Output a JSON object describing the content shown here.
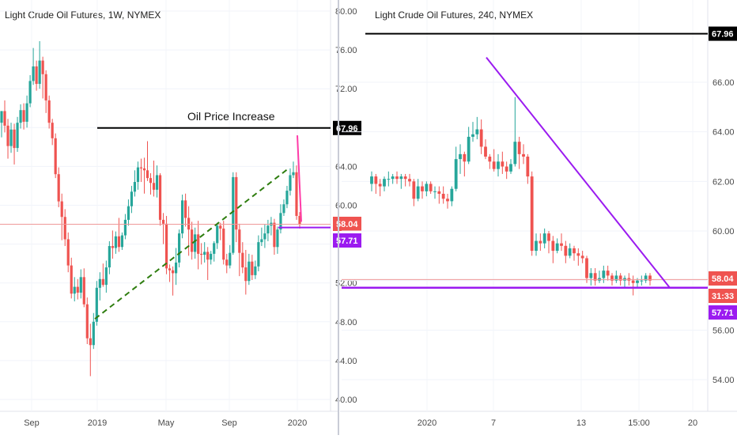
{
  "colors": {
    "bull": "#26a69a",
    "bear": "#ef5350",
    "black_label": "#000000",
    "purple": "#9b1bf0",
    "green_dash": "#2e7d0f",
    "pink": "#ff3ba8",
    "price_label": "#ef5350"
  },
  "chart_data": [
    {
      "type": "candlestick",
      "title": "Light Crude Oil Futures, 1W, NYMEX",
      "ylim": [
        38.5,
        81.5
      ],
      "y_ticks": [
        "80.00",
        "76.00",
        "72.00",
        "68.00",
        "64.00",
        "60.00",
        "56.00",
        "52.00",
        "48.00",
        "44.00",
        "40.00"
      ],
      "x_ticks": [
        "Sep",
        "2019",
        "May",
        "Sep",
        "2020"
      ],
      "labels": [
        {
          "value": 67.96,
          "text": "67.96",
          "color": "#000000"
        },
        {
          "value": 58.04,
          "text": "58.04",
          "color": "#ef5350"
        },
        {
          "value": 57.71,
          "text": "57.71",
          "color": "#9b1bf0"
        }
      ],
      "annotation": "Oil Price Increase",
      "lines": {
        "resistance": 67.96,
        "current": 58.04,
        "support": 57.71,
        "trend_start": 48.3,
        "trend_end": 63.8
      },
      "candles": [
        [
          68.5,
          69.7,
          69.7,
          67.0
        ],
        [
          69.7,
          68.2,
          70.8,
          67.5
        ],
        [
          68.2,
          66.1,
          68.9,
          64.8
        ],
        [
          66.1,
          67.8,
          68.5,
          65.4
        ],
        [
          67.8,
          65.9,
          68.4,
          64.2
        ],
        [
          65.9,
          68.5,
          69.1,
          65.5
        ],
        [
          68.5,
          69.8,
          70.4,
          67.9
        ],
        [
          69.8,
          68.6,
          70.5,
          67.8
        ],
        [
          68.6,
          70.5,
          71.3,
          68.0
        ],
        [
          70.5,
          72.8,
          73.4,
          70.1
        ],
        [
          72.8,
          74.3,
          76.2,
          72.4
        ],
        [
          74.3,
          72.5,
          74.9,
          71.8
        ],
        [
          72.5,
          74.9,
          76.9,
          72.0
        ],
        [
          74.9,
          73.5,
          75.3,
          71.0
        ],
        [
          73.5,
          70.8,
          73.9,
          69.5
        ],
        [
          70.8,
          68.5,
          71.3,
          67.9
        ],
        [
          68.5,
          66.9,
          68.9,
          66.2
        ],
        [
          66.9,
          63.2,
          67.4,
          62.8
        ],
        [
          63.2,
          60.4,
          63.9,
          59.8
        ],
        [
          60.4,
          58.8,
          61.2,
          56.4
        ],
        [
          58.8,
          56.5,
          59.6,
          55.8
        ],
        [
          56.5,
          53.8,
          57.2,
          53.1
        ],
        [
          53.8,
          50.9,
          54.6,
          50.4
        ],
        [
          50.9,
          51.6,
          52.6,
          50.1
        ],
        [
          51.6,
          51.0,
          52.4,
          50.3
        ],
        [
          51.0,
          52.6,
          53.4,
          50.4
        ],
        [
          52.6,
          49.8,
          53.5,
          49.5
        ],
        [
          49.8,
          46.3,
          50.5,
          45.7
        ],
        [
          46.3,
          45.6,
          47.8,
          42.4
        ],
        [
          45.6,
          48.0,
          48.9,
          45.2
        ],
        [
          48.0,
          51.5,
          52.2,
          47.6
        ],
        [
          51.5,
          52.4,
          53.1,
          50.2
        ],
        [
          52.4,
          51.8,
          54.0,
          51.6
        ],
        [
          51.8,
          53.6,
          54.3,
          51.0
        ],
        [
          53.6,
          55.8,
          56.3,
          52.9
        ],
        [
          55.8,
          55.6,
          57.4,
          54.5
        ],
        [
          55.6,
          56.8,
          57.3,
          55.0
        ],
        [
          56.8,
          55.7,
          58.7,
          55.2
        ],
        [
          55.7,
          56.9,
          57.2,
          55.4
        ],
        [
          56.9,
          58.5,
          59.1,
          56.5
        ],
        [
          58.5,
          59.9,
          60.6,
          57.9
        ],
        [
          59.9,
          61.4,
          62.0,
          59.2
        ],
        [
          61.4,
          62.4,
          63.6,
          60.9
        ],
        [
          62.4,
          63.9,
          64.5,
          61.6
        ],
        [
          63.9,
          63.8,
          64.8,
          62.4
        ],
        [
          63.8,
          63.6,
          64.9,
          61.2
        ],
        [
          63.6,
          62.8,
          66.6,
          62.5
        ],
        [
          62.8,
          62.3,
          63.3,
          61.1
        ],
        [
          62.3,
          61.6,
          64.6,
          60.9
        ],
        [
          61.6,
          63.1,
          64.1,
          60.8
        ],
        [
          63.1,
          58.5,
          63.3,
          57.9
        ],
        [
          58.5,
          58.1,
          59.2,
          56.0
        ],
        [
          58.1,
          53.5,
          58.9,
          52.9
        ],
        [
          53.5,
          53.3,
          53.9,
          52.1
        ],
        [
          53.3,
          53.0,
          53.7,
          50.7
        ],
        [
          53.0,
          54.1,
          55.6,
          51.8
        ],
        [
          54.1,
          57.1,
          57.5,
          53.6
        ],
        [
          57.1,
          60.5,
          61.1,
          56.6
        ],
        [
          60.5,
          58.7,
          61.2,
          57.8
        ],
        [
          58.7,
          57.5,
          59.9,
          54.8
        ],
        [
          57.5,
          55.2,
          58.3,
          54.4
        ],
        [
          55.2,
          57.0,
          57.7,
          54.5
        ],
        [
          57.0,
          55.0,
          58.4,
          53.4
        ],
        [
          55.0,
          54.9,
          56.1,
          53.9
        ],
        [
          54.9,
          55.2,
          56.2,
          54.1
        ],
        [
          55.2,
          54.4,
          55.7,
          52.3
        ],
        [
          54.4,
          55.0,
          55.3,
          53.9
        ],
        [
          55.0,
          56.1,
          56.3,
          54.2
        ],
        [
          56.1,
          57.9,
          58.2,
          55.5
        ],
        [
          57.9,
          57.6,
          58.2,
          56.4
        ],
        [
          57.6,
          54.4,
          58.4,
          53.9
        ],
        [
          54.4,
          53.8,
          55.0,
          53.0
        ],
        [
          53.8,
          55.1,
          55.9,
          53.5
        ],
        [
          55.1,
          62.9,
          63.4,
          54.9
        ],
        [
          62.9,
          57.5,
          63.4,
          56.2
        ],
        [
          57.5,
          55.1,
          58.1,
          52.7
        ],
        [
          55.1,
          53.6,
          56.2,
          53.0
        ],
        [
          53.6,
          52.2,
          55.4,
          50.8
        ],
        [
          52.2,
          54.2,
          55.0,
          51.8
        ],
        [
          54.2,
          52.8,
          54.9,
          52.3
        ],
        [
          52.8,
          53.7,
          54.3,
          52.4
        ],
        [
          53.7,
          56.2,
          56.9,
          53.2
        ],
        [
          56.2,
          56.5,
          57.7,
          55.8
        ],
        [
          56.5,
          57.1,
          58.0,
          55.6
        ],
        [
          57.1,
          57.9,
          58.5,
          56.3
        ],
        [
          57.9,
          58.2,
          58.8,
          56.9
        ],
        [
          58.2,
          55.7,
          58.6,
          54.9
        ],
        [
          55.7,
          57.5,
          57.8,
          55.0
        ],
        [
          57.5,
          59.2,
          60.1,
          57.1
        ],
        [
          59.2,
          60.1,
          60.6,
          58.9
        ],
        [
          60.1,
          61.5,
          62.0,
          59.7
        ],
        [
          61.5,
          63.1,
          63.8,
          61.0
        ],
        [
          63.1,
          63.4,
          64.5,
          62.8
        ],
        [
          63.4,
          58.9,
          64.1,
          58.5
        ],
        [
          58.9,
          58.0,
          59.3,
          57.6
        ]
      ]
    },
    {
      "type": "candlestick",
      "title": "Light Crude Oil Futures, 240, NYMEX",
      "ylim": [
        53.0,
        68.6
      ],
      "y_ticks": [
        "66.00",
        "64.00",
        "62.00",
        "60.00",
        "58.00",
        "56.00",
        "54.00"
      ],
      "x_ticks": [
        "2020",
        "7",
        "13",
        "15:00",
        "20"
      ],
      "labels": [
        {
          "value": 67.96,
          "text": "67.96",
          "color": "#000000"
        },
        {
          "value": 58.04,
          "text": "58.04",
          "color": "#ef5350"
        },
        {
          "value": 57.71,
          "text": "57.71",
          "color": "#9b1bf0"
        }
      ],
      "countdown": "31:33",
      "lines": {
        "resistance": 67.96,
        "current": 58.04,
        "support": 57.71,
        "trendline": [
          [
            0.345,
            67.0
          ],
          [
            0.935,
            57.71
          ]
        ]
      },
      "candles": [
        [
          61.9,
          62.2,
          62.4,
          61.6
        ],
        [
          62.2,
          61.9,
          62.3,
          61.5
        ],
        [
          61.9,
          61.8,
          62.1,
          61.4
        ],
        [
          61.8,
          62.1,
          62.2,
          61.6
        ],
        [
          62.1,
          62.1,
          62.4,
          61.8
        ],
        [
          62.1,
          62.2,
          62.3,
          61.9
        ],
        [
          62.2,
          62.1,
          62.4,
          61.9
        ],
        [
          62.1,
          62.2,
          62.3,
          61.7
        ],
        [
          62.2,
          62.1,
          62.3,
          61.8
        ],
        [
          62.1,
          62.0,
          62.3,
          61.8
        ],
        [
          62.0,
          61.3,
          62.1,
          61.0
        ],
        [
          61.3,
          61.8,
          62.1,
          61.2
        ],
        [
          61.8,
          61.6,
          62.0,
          61.3
        ],
        [
          61.6,
          61.9,
          62.0,
          61.4
        ],
        [
          61.9,
          61.6,
          62.0,
          61.5
        ],
        [
          61.6,
          61.6,
          61.8,
          61.3
        ],
        [
          61.6,
          61.5,
          61.8,
          61.1
        ],
        [
          61.5,
          61.3,
          61.8,
          61.1
        ],
        [
          61.3,
          61.2,
          61.5,
          60.9
        ],
        [
          61.2,
          61.7,
          61.8,
          61.0
        ],
        [
          61.7,
          62.9,
          63.4,
          61.6
        ],
        [
          62.9,
          63.1,
          63.5,
          62.3
        ],
        [
          63.1,
          62.8,
          63.2,
          62.2
        ],
        [
          62.8,
          63.8,
          64.2,
          62.7
        ],
        [
          63.8,
          63.9,
          64.4,
          63.6
        ],
        [
          63.9,
          64.1,
          64.6,
          63.7
        ],
        [
          64.1,
          63.4,
          64.5,
          63.1
        ],
        [
          63.4,
          63.0,
          63.7,
          62.9
        ],
        [
          63.0,
          62.8,
          63.1,
          62.5
        ],
        [
          62.8,
          62.5,
          63.3,
          62.4
        ],
        [
          62.5,
          62.8,
          63.1,
          62.2
        ],
        [
          62.8,
          62.6,
          63.2,
          62.3
        ],
        [
          62.6,
          62.4,
          62.8,
          62.1
        ],
        [
          62.4,
          62.7,
          62.9,
          62.3
        ],
        [
          62.7,
          63.6,
          65.4,
          62.6
        ],
        [
          63.6,
          63.1,
          63.8,
          62.5
        ],
        [
          63.1,
          63.0,
          63.5,
          62.7
        ],
        [
          63.0,
          62.2,
          63.1,
          61.9
        ],
        [
          62.2,
          59.2,
          62.4,
          59.0
        ],
        [
          59.2,
          59.6,
          59.9,
          59.0
        ],
        [
          59.6,
          59.5,
          59.9,
          59.2
        ],
        [
          59.5,
          59.9,
          60.1,
          59.3
        ],
        [
          59.9,
          59.6,
          60.0,
          59.1
        ],
        [
          59.6,
          59.2,
          59.8,
          58.7
        ],
        [
          59.2,
          59.5,
          59.7,
          59.1
        ],
        [
          59.5,
          59.4,
          59.9,
          59.2
        ],
        [
          59.4,
          59.0,
          59.6,
          58.7
        ],
        [
          59.0,
          59.3,
          59.5,
          58.9
        ],
        [
          59.3,
          59.1,
          59.4,
          58.8
        ],
        [
          59.1,
          59.0,
          59.3,
          58.6
        ],
        [
          59.0,
          58.9,
          59.2,
          58.7
        ],
        [
          58.9,
          58.1,
          59.0,
          57.9
        ],
        [
          58.1,
          58.3,
          58.5,
          57.8
        ],
        [
          58.3,
          58.0,
          58.5,
          57.8
        ],
        [
          58.0,
          58.1,
          58.4,
          57.9
        ],
        [
          58.1,
          58.4,
          58.6,
          57.9
        ],
        [
          58.4,
          58.2,
          58.6,
          58.0
        ],
        [
          58.2,
          58.0,
          58.3,
          57.8
        ],
        [
          58.0,
          58.2,
          58.4,
          57.9
        ],
        [
          58.2,
          58.0,
          58.3,
          57.8
        ],
        [
          58.0,
          58.1,
          58.2,
          57.7
        ],
        [
          58.1,
          58.0,
          58.3,
          57.8
        ],
        [
          58.0,
          57.9,
          58.2,
          57.4
        ],
        [
          57.9,
          58.0,
          58.1,
          57.7
        ],
        [
          58.0,
          58.0,
          58.2,
          57.8
        ],
        [
          58.0,
          58.2,
          58.3,
          57.9
        ],
        [
          58.2,
          58.0,
          58.3,
          57.8
        ]
      ]
    }
  ]
}
